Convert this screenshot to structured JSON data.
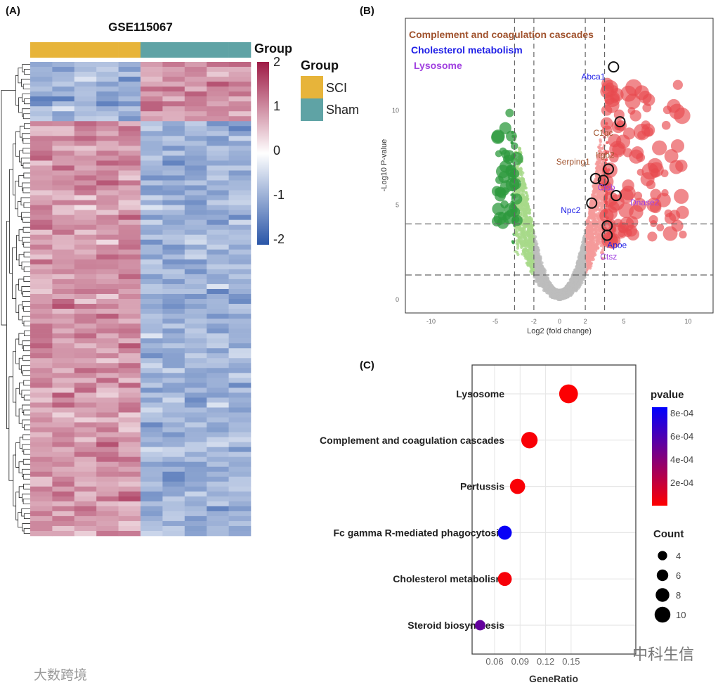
{
  "panels": {
    "a": "(A)",
    "b": "(B)",
    "c": "(C)"
  },
  "watermarks": {
    "left": "大数跨境",
    "right": "中科生信"
  },
  "chart_data": [
    {
      "type": "heatmap",
      "title": "GSE115067",
      "annotation_title": "Group",
      "legend_title": "Group",
      "groups": [
        {
          "name": "SCI",
          "color": "#E7B43A",
          "n_samples": 5
        },
        {
          "name": "Sham",
          "color": "#5FA3A5",
          "n_samples": 5
        }
      ],
      "color_scale": {
        "min": -2,
        "max": 2,
        "ticks": [
          "2",
          "1",
          "0",
          "-1",
          "-2"
        ],
        "low": "#2A56A8",
        "mid": "#FFFFFF",
        "high": "#9E1B45"
      },
      "row_clusters": [
        {
          "rows": 12,
          "sci_mean": -0.9,
          "sham_mean": 0.9
        },
        {
          "rows": 84,
          "sci_mean": 0.9,
          "sham_mean": -0.9
        }
      ],
      "n_columns": 10
    },
    {
      "type": "scatter",
      "subtype": "volcano",
      "xlabel": "Log2 (fold change)",
      "ylabel": "-Log10 P-value",
      "xlim": [
        -12,
        12.5
      ],
      "ylim": [
        -0.4,
        15.2
      ],
      "xticks": [
        "-10",
        "-5",
        "-2",
        "0",
        "2",
        "5",
        "10"
      ],
      "xtick_values": [
        -10,
        -5,
        -2,
        0,
        2,
        5,
        10
      ],
      "yticks": [
        "0",
        "5",
        "10"
      ],
      "ytick_values": [
        0,
        5,
        10
      ],
      "vlines": [
        -3.5,
        -2,
        2,
        3.5
      ],
      "hlines": [
        1.3,
        4
      ],
      "colors": {
        "down_strong": "#2E9A3E",
        "down": "#A8D98A",
        "ns": "#BDBDBD",
        "up": "#F59A9A",
        "up_strong": "#E84A4F"
      },
      "pathway_legend": [
        {
          "name": "Complement and coagulation cascades",
          "color": "#A0522D"
        },
        {
          "name": "Cholesterol metabolism",
          "color": "#1E1EE6"
        },
        {
          "name": "Lysosome",
          "color": "#A040E0"
        }
      ],
      "labeled_genes": [
        {
          "gene": "Abca1",
          "x": 4.2,
          "y": 12.3,
          "pathway": 1
        },
        {
          "gene": "C1qc",
          "x": 4.7,
          "y": 9.4,
          "pathway": 0
        },
        {
          "gene": "Itgb2",
          "x": 3.8,
          "y": 6.9,
          "pathway": 0
        },
        {
          "gene": "Serping1",
          "x": 2.8,
          "y": 6.4,
          "pathway": 0
        },
        {
          "gene": "Ctsb",
          "x": 3.4,
          "y": 6.3,
          "pathway": 2
        },
        {
          "gene": "Dnase2",
          "x": 4.4,
          "y": 5.5,
          "pathway": 2
        },
        {
          "gene": "Npc2",
          "x": 2.5,
          "y": 5.1,
          "pathway": 1
        },
        {
          "gene": "Ctsz",
          "x": 3.7,
          "y": 3.9,
          "pathway": 2
        },
        {
          "gene": "Apoe",
          "x": 3.7,
          "y": 3.4,
          "pathway": 1
        }
      ]
    },
    {
      "type": "scatter",
      "subtype": "dotplot",
      "xlabel": "GeneRatio",
      "xlim": [
        0.038,
        0.152
      ],
      "xticks": [
        "0.06",
        "0.09",
        "0.12",
        "0.15"
      ],
      "xtick_values": [
        0.06,
        0.09,
        0.12,
        0.15
      ],
      "categories": [
        "Lysosome",
        "Complement and coagulation cascades",
        "Pertussis",
        "Fc gamma R-mediated phagocytosis",
        "Cholesterol metabolism",
        "Steroid biosynthesis"
      ],
      "gene_ratio": [
        0.147,
        0.101,
        0.087,
        0.072,
        0.072,
        0.043
      ],
      "count": [
        11,
        9,
        8,
        7,
        7,
        4
      ],
      "pvalue": [
        1e-05,
        2e-05,
        2e-05,
        0.00082,
        3e-05,
        0.00052
      ],
      "color_legend": {
        "title": "pvalue",
        "ticks": [
          "8e-04",
          "6e-04",
          "4e-04",
          "2e-04"
        ],
        "tick_values": [
          0.0008,
          0.0006,
          0.0004,
          0.0002
        ],
        "range": [
          0,
          0.00085
        ],
        "low": "#FF0000",
        "high": "#0000FF"
      },
      "size_legend": {
        "title": "Count",
        "ticks": [
          "4",
          "6",
          "8",
          "10"
        ],
        "tick_values": [
          4,
          6,
          8,
          10
        ]
      }
    }
  ]
}
